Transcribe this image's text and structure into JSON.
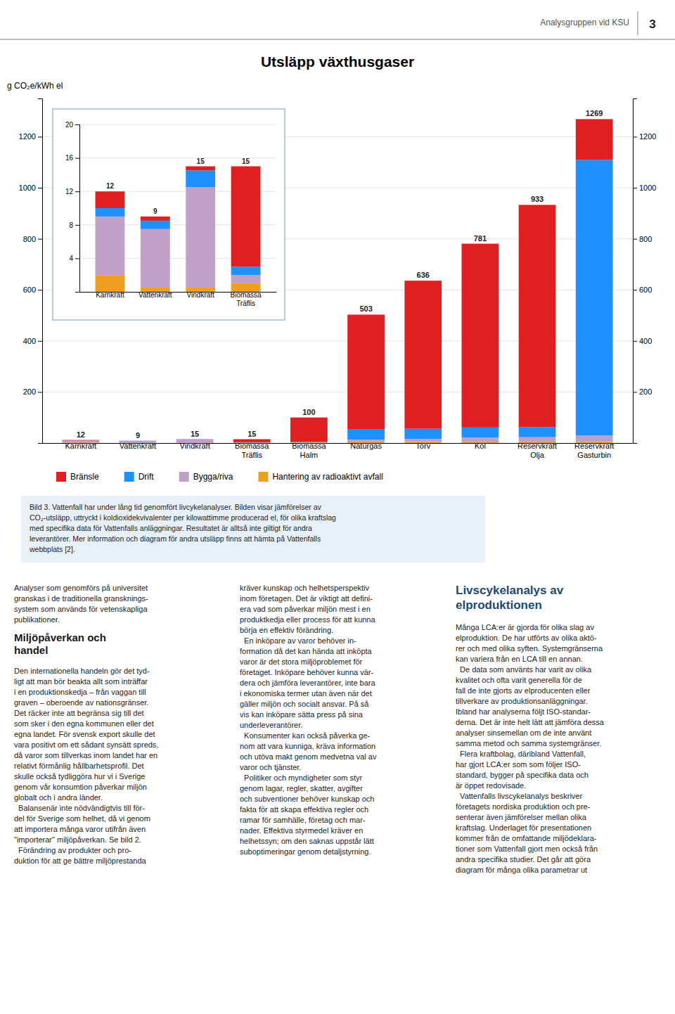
{
  "header_text": "Analysgruppen vid KSU",
  "page_number": "3",
  "chart_data": [
    {
      "type": "bar",
      "stacked": true,
      "title": "Utsläpp växthusgaser",
      "ylabel": "g CO₂e/kWh el",
      "categories": [
        "Kärnkraft",
        "Vattenkraft",
        "Vindkraft",
        "Biomassa\nTräflis",
        "Biomassa\nHalm",
        "Naturgas",
        "Torv",
        "Kol",
        "Reservkraft\nOlja",
        "Reservkraft\nGasturbin"
      ],
      "series": [
        {
          "name": "Hantering av radioaktivt avfall",
          "color": "#f0a020",
          "values": [
            2,
            0.5,
            0.5,
            1,
            2,
            3,
            4,
            3,
            3,
            4
          ]
        },
        {
          "name": "Bygga/riva",
          "color": "#c0a0c8",
          "values": [
            7,
            7,
            12,
            1,
            1,
            10,
            12,
            18,
            20,
            25
          ]
        },
        {
          "name": "Drift",
          "color": "#1e90ff",
          "values": [
            1,
            1,
            2,
            1,
            2,
            40,
            40,
            40,
            40,
            1080
          ]
        },
        {
          "name": "Bränsle",
          "color": "#e02020",
          "values": [
            2,
            0.5,
            0.5,
            12,
            95,
            450,
            580,
            720,
            870,
            160
          ]
        }
      ],
      "totals": [
        12,
        9,
        15,
        15,
        100,
        503,
        636,
        781,
        933,
        1269
      ],
      "ylim": [
        0,
        1350
      ],
      "yticks": [
        200,
        400,
        600,
        800,
        1000,
        1200
      ],
      "y2lim": [
        0,
        1350
      ],
      "y2ticks": [
        200,
        400,
        600,
        800,
        1000,
        1200
      ],
      "grid": true,
      "legend": "bottom"
    },
    {
      "type": "bar",
      "stacked": true,
      "categories": [
        "Kärnkraft",
        "Vattenkraft",
        "Vindkraft",
        "Biomassa\nTräflis"
      ],
      "series": [
        {
          "color": "#f0a020",
          "values": [
            2,
            0.5,
            0.5,
            1
          ]
        },
        {
          "color": "#c0a0c8",
          "values": [
            7,
            7,
            12,
            1
          ]
        },
        {
          "color": "#1e90ff",
          "values": [
            1,
            1,
            2,
            1
          ]
        },
        {
          "color": "#e02020",
          "values": [
            2,
            0.5,
            0.5,
            12
          ]
        }
      ],
      "totals": [
        12,
        9,
        15,
        15
      ],
      "ylim": [
        0,
        20
      ],
      "yticks": [
        4,
        8,
        12,
        16,
        20
      ],
      "grid": true
    }
  ],
  "figure_caption": "Bild 3. Vattenfall har under lång tid genomfört livcykelanalyser. Bilden visar jämförelser av\nCO₂-utsläpp, uttryckt i koldioxidekvivalenter per kilowattimme producerad el, för olika kraftslag\nmed specifika data för Vattenfalls anläggningar. Resultatet är alltså inte giltigt för andra\nleverantörer. Mer information och diagram för andra utsläpp finns att hämta på Vattenfalls\nwebbplats [2].",
  "columns": [
    {
      "intro": "Analyser som genomförs på universitet\ngranskas i de traditionella gransknings-\nsystem som används för vetenskapliga\npublikationer.",
      "header": "Miljöpåverkan och\nhandel",
      "body": "Den internationella handeln gör det tyd-\nligt att man bör beakta allt som inträffar\ni en produktionskedja – från vaggan till\ngraven – oberoende av nationsgränser.\nDet räcker inte att begränsa sig till det\nsom sker i den egna kommunen eller det\negna landet. För svensk export skulle det\nvara positivt om ett sådant synsätt spreds,\ndå varor som tillverkas inom landet har en\nrelativt förmånlig hållbarhetsprofil. Det\nskulle också tydliggöra hur vi i Sverige\ngenom vår konsumtion påverkar miljön\nglobalt och i andra länder.\n  Balansenär inte nödvändigtvis till för-\ndel för Sverige som helhet, då vi genom\natt importera många varor utifrån även\n\"importerar\" miljöpåverkan. Se bild 2.\n  Förändring av produkter och pro-\nduktion för att ge bättre miljöprestanda"
    },
    {
      "body": "kräver kunskap och helhetsperspektiv\ninom företagen. Det är viktigt att defini-\nera vad som påverkar miljön mest i en\nproduktkedja eller process för att kunna\nbörja en effektiv förändring.\n  En inköpare av varor behöver in-\nformation då det kan hända att inköpta\nvaror är det stora miljöproblemet för\nföretaget. Inköpare behöver kunna vär-\ndera och jämföra leverantörer, inte bara\ni ekonomiska termer utan även när det\ngäller miljön och socialt ansvar. På så\nvis kan inköpare sätta press på sina\nunderleverantörer.\n  Konsumenter kan också påverka ge-\nnom att vara kunniga, kräva information\noch utöva makt genom medvetna val av\nvaror och tjänster.\n  Politiker och myndigheter som styr\ngenom lagar, regler, skatter, avgifter\noch subventioner behöver kunskap och\nfakta för att skapa effektiva regler och\nramar för samhälle, företag och mar-\nnader. Effektiva styrmedel kräver en\nhelhetssyn; om den saknas uppstår lätt\nsuboptimeringar genom detaljstyrning."
    },
    {
      "header": "Livscykelanalys av\nelproduktionen",
      "body": "Många LCA:er är gjorda för olika slag av\nelproduktion. De har utförts av olika aktö-\nrer och med olika syften. Systemgränserna\nkan variera från en LCA till en annan.\n  De data som använts har varit av olika\nkvalitet och ofta varit generella för de\nfall de inte gjorts av elproducenten eller\ntillverkare av produktionsanläggningar.\nIbland har analyserna följt ISO-standar-\nderna. Det är inte helt lätt att jämföra dessa\nanalyser sinsemellan om de inte använt\nsamma metod och samma systemgränser.\n  Flera kraftbolag, däribland Vattenfall,\nhar gjort LCA:er som som följer ISO-\nstandard, bygger på specifika data och\när öppet redovisade.\n  Vattenfalls livscykelanalys beskriver\nföretagets nordiska produktion och pre-\nsenterar även jämförelser mellan olika\nkraftslag. Underlaget för presentationen\nkommer från de omfattande miljödeklara-\ntioner som Vattenfall gjort men också från\nandra specifika studier. Det går att göra\ndiagram för många olika parametrar ut"
    }
  ]
}
